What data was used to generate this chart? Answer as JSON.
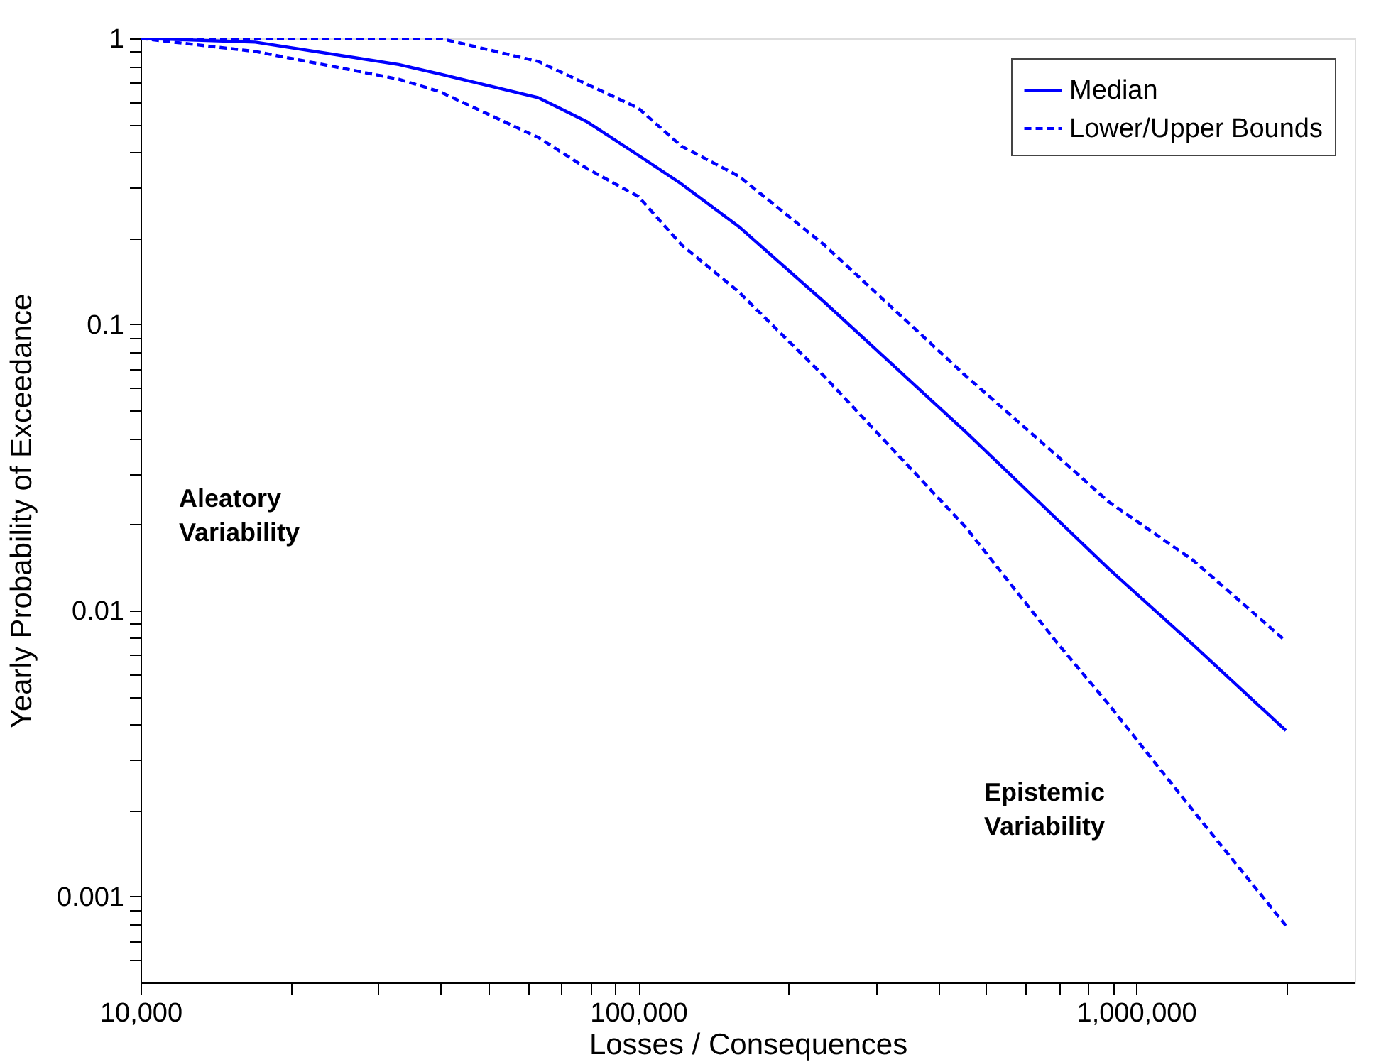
{
  "chart_data": {
    "type": "line",
    "xlabel": "Losses / Consequences",
    "ylabel": "Yearly Probability of Exceedance",
    "x": [
      10000,
      17000,
      33000,
      40000,
      63000,
      79000,
      100000,
      122000,
      159000,
      236000,
      455000,
      690000,
      880000,
      1300000,
      2000000
    ],
    "series": [
      {
        "name": "Median",
        "color": "#0000ff",
        "line_style": "solid",
        "values": [
          1,
          0.97,
          0.81,
          0.75,
          0.62,
          0.51,
          0.39,
          0.31,
          0.22,
          0.12,
          0.042,
          0.021,
          0.014,
          0.0076,
          0.0038
        ]
      },
      {
        "name": "Lower/Upper Bounds",
        "color": "#0000ff",
        "line_style": "dashed",
        "values": [
          1,
          1,
          1,
          1,
          0.83,
          0.69,
          0.57,
          0.42,
          0.33,
          0.19,
          0.066,
          0.035,
          0.024,
          0.015,
          0.0078
        ]
      },
      {
        "color": "#0000ff",
        "line_style": "dashed",
        "values": [
          1,
          0.9,
          0.72,
          0.65,
          0.45,
          0.35,
          0.28,
          0.19,
          0.13,
          0.066,
          0.0195,
          0.0078,
          0.0047,
          0.002,
          0.00079
        ]
      }
    ],
    "log": "xy",
    "xlim": [
      10000,
      2750000
    ],
    "ylim": [
      0.0005,
      1
    ],
    "xticks": [
      {
        "value": 10000,
        "label": "10,000"
      },
      {
        "value": 20000,
        "label": null
      },
      {
        "value": 30000,
        "label": null
      },
      {
        "value": 40000,
        "label": null
      },
      {
        "value": 50000,
        "label": null
      },
      {
        "value": 60000,
        "label": null
      },
      {
        "value": 70000,
        "label": null
      },
      {
        "value": 80000,
        "label": null
      },
      {
        "value": 90000,
        "label": null
      },
      {
        "value": 100000,
        "label": "100,000"
      },
      {
        "value": 200000,
        "label": null
      },
      {
        "value": 300000,
        "label": null
      },
      {
        "value": 400000,
        "label": null
      },
      {
        "value": 500000,
        "label": null
      },
      {
        "value": 600000,
        "label": null
      },
      {
        "value": 700000,
        "label": null
      },
      {
        "value": 800000,
        "label": null
      },
      {
        "value": 900000,
        "label": null
      },
      {
        "value": 1000000,
        "label": "1,000,000"
      },
      {
        "value": 2000000,
        "label": null
      }
    ],
    "yticks": [
      {
        "value": 0.0006,
        "label": null
      },
      {
        "value": 0.0007,
        "label": null
      },
      {
        "value": 0.0008,
        "label": null
      },
      {
        "value": 0.0009,
        "label": null
      },
      0.001,
      {
        "value": 0.002,
        "label": null
      },
      {
        "value": 0.003,
        "label": null
      },
      {
        "value": 0.004,
        "label": null
      },
      {
        "value": 0.005,
        "label": null
      },
      {
        "value": 0.006,
        "label": null
      },
      {
        "value": 0.007,
        "label": null
      },
      {
        "value": 0.008,
        "label": null
      },
      {
        "value": 0.009,
        "label": null
      },
      0.01,
      {
        "value": 0.02,
        "label": null
      },
      {
        "value": 0.03,
        "label": null
      },
      {
        "value": 0.04,
        "label": null
      },
      {
        "value": 0.05,
        "label": null
      },
      {
        "value": 0.06,
        "label": null
      },
      {
        "value": 0.07,
        "label": null
      },
      {
        "value": 0.08,
        "label": null
      },
      {
        "value": 0.09,
        "label": null
      },
      0.1,
      {
        "value": 0.2,
        "label": null
      },
      {
        "value": 0.3,
        "label": null
      },
      {
        "value": 0.4,
        "label": null
      },
      {
        "value": 0.5,
        "label": null
      },
      {
        "value": 0.6,
        "label": null
      },
      {
        "value": 0.7,
        "label": null
      },
      {
        "value": 0.8,
        "label": null
      },
      {
        "value": 0.9,
        "label": null
      },
      1
    ],
    "annotations": [
      "Aleatory\nVariability",
      "Epistemic\nVariability"
    ],
    "grid": false,
    "legend": "top right",
    "marker": "none"
  }
}
